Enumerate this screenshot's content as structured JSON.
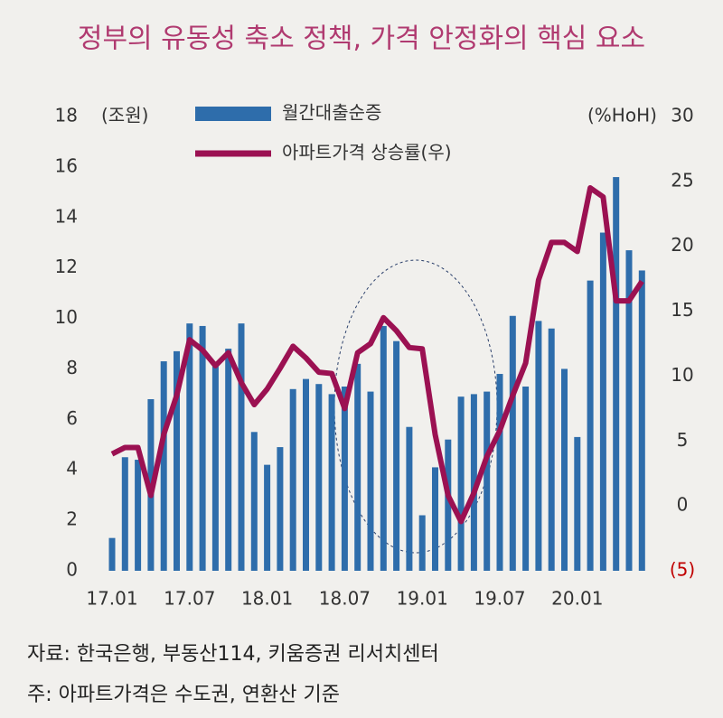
{
  "chart_data": {
    "type": "combo",
    "title": "정부의 유동성 축소 정책, 가격 안정화의 핵심 요소",
    "ylabel": "(조원)",
    "y2label": "(%HoH)",
    "categories": [
      "17.01",
      null,
      null,
      null,
      null,
      null,
      "17.07",
      null,
      null,
      null,
      null,
      null,
      "18.01",
      null,
      null,
      null,
      null,
      null,
      "18.07",
      null,
      null,
      null,
      null,
      null,
      "19.01",
      null,
      null,
      null,
      null,
      null,
      "19.07",
      null,
      null,
      null,
      null,
      null,
      "20.01",
      null,
      null,
      null,
      null,
      null
    ],
    "series": [
      {
        "name": "월간대출순증",
        "type": "bar",
        "color": "#2e6dab",
        "values": [
          1.3,
          4.5,
          4.4,
          6.8,
          8.3,
          8.7,
          9.8,
          9.7,
          8.1,
          8.8,
          9.8,
          5.5,
          4.2,
          4.9,
          7.2,
          7.6,
          7.4,
          7.0,
          7.3,
          8.2,
          7.1,
          9.7,
          9.1,
          5.7,
          2.2,
          4.1,
          5.2,
          6.9,
          7.0,
          7.1,
          7.8,
          10.1,
          7.3,
          9.9,
          9.6,
          8.0,
          5.3,
          11.5,
          13.4,
          15.6,
          12.7,
          11.9
        ]
      },
      {
        "name": "아파트가격 상승률(우)",
        "type": "line",
        "axis": "y2",
        "color": "#9b1152",
        "values": [
          4.0,
          4.5,
          4.5,
          0.8,
          5.5,
          8.5,
          12.8,
          12.0,
          10.8,
          11.8,
          9.5,
          7.8,
          9.0,
          10.6,
          12.3,
          11.4,
          10.3,
          10.2,
          7.5,
          11.8,
          12.5,
          14.5,
          13.5,
          12.2,
          12.1,
          5.5,
          0.8,
          -1.2,
          1.0,
          3.8,
          5.8,
          8.5,
          11.0,
          17.4,
          20.3,
          20.3,
          19.6,
          24.5,
          23.8,
          15.8,
          15.8,
          17.3
        ]
      }
    ],
    "ylim": [
      0,
      18
    ],
    "yticks": [
      0,
      2,
      4,
      6,
      8,
      10,
      12,
      14,
      16,
      18
    ],
    "y2lim": [
      -5,
      30
    ],
    "y2ticks": [
      {
        "value": -5,
        "label": "(5)",
        "color": "#c00000"
      },
      0,
      5,
      10,
      15,
      20,
      25,
      30
    ],
    "source": "자료: 한국은행, 부동산114, 키움증권 리서치센터",
    "note": "주: 아파트가격은 수도권, 연환산 기준"
  }
}
